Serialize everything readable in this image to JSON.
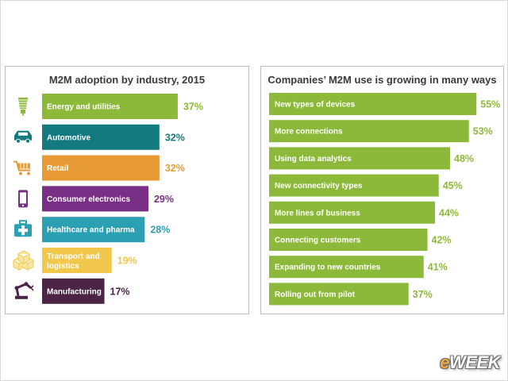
{
  "chart_data": [
    {
      "type": "bar",
      "orientation": "horizontal",
      "title": "M2M adoption by industry, 2015",
      "xlim": [
        0,
        100
      ],
      "categories": [
        "Energy and utilities",
        "Automotive",
        "Retail",
        "Consumer electronics",
        "Healthcare and pharma",
        "Transport and logistics",
        "Manufacturing"
      ],
      "values": [
        37,
        32,
        32,
        29,
        28,
        19,
        17
      ],
      "value_labels": [
        "37%",
        "32%",
        "32%",
        "29%",
        "28%",
        "19%",
        "17%"
      ],
      "colors": [
        "#8db93a",
        "#137a80",
        "#e89b34",
        "#7a2f86",
        "#2ca0b3",
        "#f1c84b",
        "#4b2446"
      ],
      "icons": [
        "lightbulb-icon",
        "car-icon",
        "shopping-cart-icon",
        "smartphone-icon",
        "medical-kit-icon",
        "boxes-icon",
        "robot-arm-icon"
      ]
    },
    {
      "type": "bar",
      "orientation": "horizontal",
      "title": "Companies’ M2M use  is growing in many ways",
      "xlim": [
        0,
        100
      ],
      "categories": [
        "New types of devices",
        "More connections",
        "Using data analytics",
        "New connectivity types",
        "More lines of business",
        "Connecting customers",
        "Expanding to new countries",
        "Rolling out from pilot"
      ],
      "values": [
        55,
        53,
        48,
        45,
        44,
        42,
        41,
        37
      ],
      "value_labels": [
        "55%",
        "53%",
        "48%",
        "45%",
        "44%",
        "42%",
        "41%",
        "37%"
      ],
      "colors": [
        "#8db93a"
      ]
    }
  ],
  "watermark": {
    "prefix": "e",
    "rest": "WEEK"
  }
}
